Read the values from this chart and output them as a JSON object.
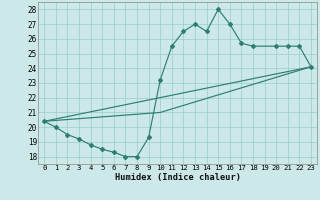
{
  "xlabel": "Humidex (Indice chaleur)",
  "bg_color": "#cce8e8",
  "grid_color": "#99cccc",
  "line_color": "#2e7f70",
  "xlim": [
    -0.5,
    23.5
  ],
  "ylim": [
    17.5,
    28.5
  ],
  "xticks": [
    0,
    1,
    2,
    3,
    4,
    5,
    6,
    7,
    8,
    9,
    10,
    11,
    12,
    13,
    14,
    15,
    16,
    17,
    18,
    19,
    20,
    21,
    22,
    23
  ],
  "yticks": [
    18,
    19,
    20,
    21,
    22,
    23,
    24,
    25,
    26,
    27,
    28
  ],
  "curve_x": [
    0,
    1,
    2,
    3,
    4,
    5,
    6,
    7,
    8,
    9,
    10,
    11,
    12,
    13,
    14,
    15,
    16,
    17,
    18,
    20,
    21,
    22,
    23
  ],
  "curve_y": [
    20.4,
    20.0,
    19.5,
    19.2,
    18.8,
    18.5,
    18.3,
    18.0,
    18.0,
    19.3,
    23.2,
    25.5,
    26.5,
    27.0,
    26.5,
    28.0,
    27.0,
    25.7,
    25.5,
    25.5,
    25.5,
    25.5,
    24.1
  ],
  "line1_x": [
    0,
    23
  ],
  "line1_y": [
    20.4,
    24.1
  ],
  "line2_x": [
    0,
    10,
    23
  ],
  "line2_y": [
    20.4,
    21.0,
    24.1
  ],
  "line3_x": [
    0,
    23
  ],
  "line3_y": [
    20.4,
    24.1
  ]
}
